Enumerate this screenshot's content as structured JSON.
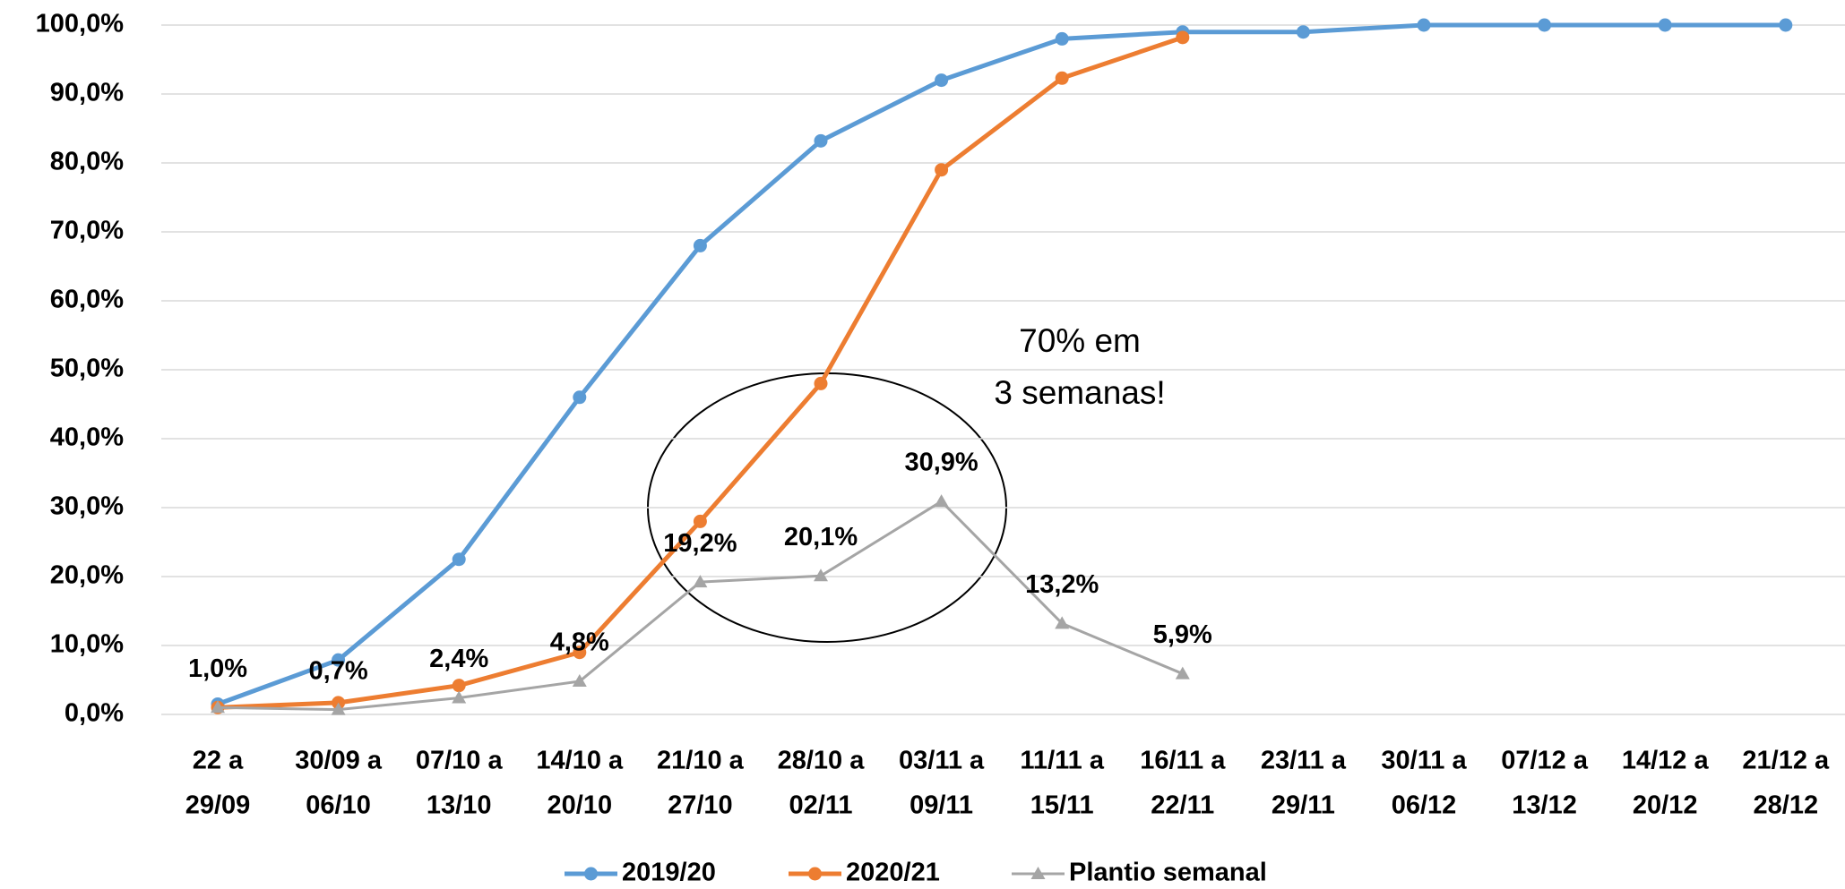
{
  "chart_data": {
    "type": "line",
    "categories": [
      [
        "22 a",
        "29/09"
      ],
      [
        "30/09 a",
        "06/10"
      ],
      [
        "07/10 a",
        "13/10"
      ],
      [
        "14/10 a",
        "20/10"
      ],
      [
        "21/10 a",
        "27/10"
      ],
      [
        "28/10 a",
        "02/11"
      ],
      [
        "03/11 a",
        "09/11"
      ],
      [
        "11/11 a",
        "15/11"
      ],
      [
        "16/11 a",
        "22/11"
      ],
      [
        "23/11 a",
        "29/11"
      ],
      [
        "30/11 a",
        "06/12"
      ],
      [
        "07/12 a",
        "13/12"
      ],
      [
        "14/12 a",
        "20/12"
      ],
      [
        "21/12 a",
        "28/12"
      ]
    ],
    "series": [
      {
        "name": "2019/20",
        "color": "#5b9bd5",
        "marker": "circle",
        "values": [
          1.5,
          7.9,
          22.5,
          46,
          68,
          83.2,
          92,
          98,
          99,
          99,
          100,
          100,
          100,
          100
        ]
      },
      {
        "name": "2020/21",
        "color": "#ed7d31",
        "marker": "circle",
        "values": [
          1.0,
          1.7,
          4.2,
          9.0,
          28,
          48,
          79,
          92.3,
          98.2,
          null,
          null,
          null,
          null,
          null
        ]
      },
      {
        "name": "Plantio semanal",
        "color": "#a5a5a5",
        "marker": "triangle",
        "values": [
          1.0,
          0.7,
          2.4,
          4.8,
          19.2,
          20.1,
          30.9,
          13.2,
          5.9,
          null,
          null,
          null,
          null,
          null
        ],
        "value_labels": [
          "1,0%",
          "0,7%",
          "2,4%",
          "4,8%",
          "19,2%",
          "20,1%",
          "30,9%",
          "13,2%",
          "5,9%",
          null,
          null,
          null,
          null,
          null
        ]
      }
    ],
    "ylim": [
      0,
      100
    ],
    "yticks": [
      {
        "value": 0,
        "label": "0,0%"
      },
      {
        "value": 10,
        "label": "10,0%"
      },
      {
        "value": 20,
        "label": "20,0%"
      },
      {
        "value": 30,
        "label": "30,0%"
      },
      {
        "value": 40,
        "label": "40,0%"
      },
      {
        "value": 50,
        "label": "50,0%"
      },
      {
        "value": 60,
        "label": "60,0%"
      },
      {
        "value": 70,
        "label": "70,0%"
      },
      {
        "value": 80,
        "label": "80,0%"
      },
      {
        "value": 90,
        "label": "90,0%"
      },
      {
        "value": 100,
        "label": "100,0%"
      }
    ],
    "grid": true,
    "legend": "bottom",
    "annotation": [
      "70% em",
      "3 semanas!"
    ]
  }
}
